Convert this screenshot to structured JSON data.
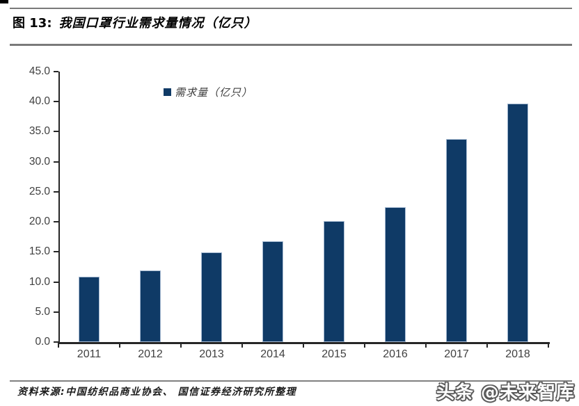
{
  "figure": {
    "label": "图 13:",
    "title": "我国口罩行业需求量情况（亿只）"
  },
  "legend": {
    "label": "需求量（亿只）"
  },
  "source_text": "资料来源:中国纺织品商业协会、 国信证券经济研究所整理",
  "watermark_text": "头条 @未来智库",
  "colors": {
    "bar_fill": "#0F3A66",
    "bar_edge": "#B7C9DE",
    "axis": "#262626",
    "tick_label": "#404040",
    "rule": "#7A7A7A"
  },
  "chart_data": {
    "type": "bar",
    "title": "我国口罩行业需求量情况（亿只）",
    "categories": [
      "2011",
      "2012",
      "2013",
      "2014",
      "2015",
      "2016",
      "2017",
      "2018"
    ],
    "series": [
      {
        "name": "需求量（亿只）",
        "values": [
          10.9,
          11.9,
          14.9,
          16.8,
          20.1,
          22.4,
          33.8,
          39.7
        ]
      }
    ],
    "xlabel": "",
    "ylabel": "",
    "ylim": [
      0,
      45
    ],
    "ytick_step": 5,
    "ytick_decimals": 1,
    "grid": false,
    "legend_position": "top-center-left"
  }
}
